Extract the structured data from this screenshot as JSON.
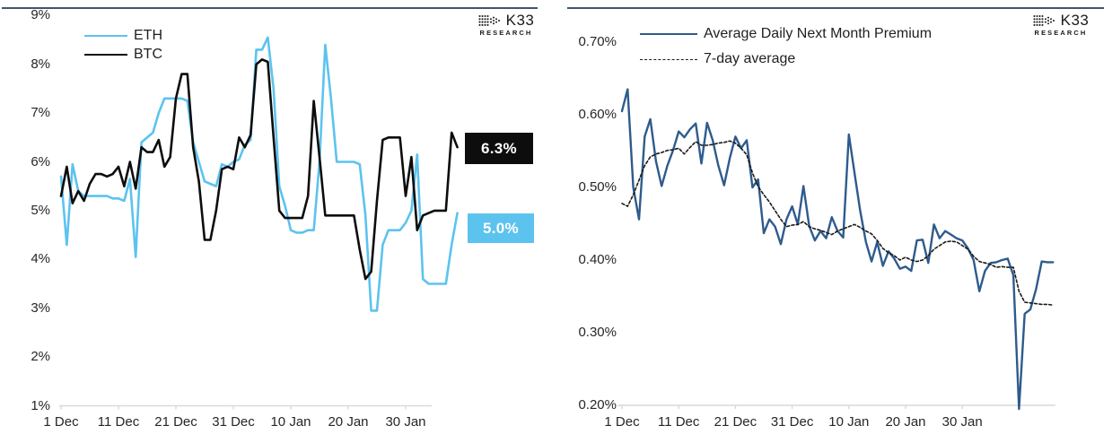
{
  "branding": {
    "logo_text": "K33",
    "logo_subtext": "RESEARCH"
  },
  "colors": {
    "eth_blue": "#5CC3EF",
    "btc_black": "#0D0D0D",
    "premium_blue": "#2E5B8C",
    "avg_dashed": "#1A1A1A",
    "axis_gray": "#D9D9D9",
    "header_rule": "#44546A",
    "label_text": "#262626"
  },
  "chart_data": [
    {
      "type": "line",
      "title": "",
      "xlabel": "",
      "ylabel": "",
      "grid": false,
      "legend_position": "top-left",
      "ylim": [
        1,
        9
      ],
      "y_ticks": [
        {
          "label": "9%",
          "value": 9
        },
        {
          "label": "8%",
          "value": 8
        },
        {
          "label": "7%",
          "value": 7
        },
        {
          "label": "6%",
          "value": 6
        },
        {
          "label": "5%",
          "value": 5
        },
        {
          "label": "4%",
          "value": 4
        },
        {
          "label": "3%",
          "value": 3
        },
        {
          "label": "2%",
          "value": 2
        },
        {
          "label": "1%",
          "value": 1
        }
      ],
      "x_ticks": [
        {
          "label": "1 Dec",
          "day": 0
        },
        {
          "label": "11 Dec",
          "day": 10
        },
        {
          "label": "21 Dec",
          "day": 20
        },
        {
          "label": "31 Dec",
          "day": 30
        },
        {
          "label": "10 Jan",
          "day": 40
        },
        {
          "label": "20 Jan",
          "day": 50
        },
        {
          "label": "30 Jan",
          "day": 60
        }
      ],
      "series": [
        {
          "name": "ETH",
          "color": "#5CC3EF",
          "style": "solid",
          "values": [
            5.7,
            4.3,
            5.95,
            5.4,
            5.3,
            5.3,
            5.3,
            5.3,
            5.3,
            5.25,
            5.25,
            5.2,
            5.65,
            4.05,
            6.4,
            6.5,
            6.6,
            7.0,
            7.3,
            7.3,
            7.3,
            7.3,
            7.25,
            6.4,
            6.0,
            5.6,
            5.55,
            5.5,
            5.95,
            5.9,
            6.0,
            6.05,
            6.35,
            6.45,
            8.3,
            8.3,
            8.55,
            7.5,
            5.5,
            5.1,
            4.6,
            4.55,
            4.55,
            4.6,
            4.6,
            6.0,
            8.4,
            7.3,
            6.0,
            6.0,
            6.0,
            6.0,
            5.95,
            4.9,
            2.95,
            2.95,
            4.3,
            4.6,
            4.6,
            4.6,
            4.75,
            5.0,
            6.15,
            3.6,
            3.5,
            3.5,
            3.5,
            3.5,
            4.3,
            4.95
          ]
        },
        {
          "name": "BTC",
          "color": "#0D0D0D",
          "style": "solid",
          "values": [
            5.3,
            5.9,
            5.15,
            5.4,
            5.2,
            5.55,
            5.75,
            5.75,
            5.7,
            5.75,
            5.9,
            5.5,
            6.0,
            5.45,
            6.3,
            6.2,
            6.2,
            6.45,
            5.9,
            6.1,
            7.3,
            7.8,
            7.8,
            6.3,
            5.6,
            4.4,
            4.4,
            5.0,
            5.85,
            5.9,
            5.85,
            6.5,
            6.3,
            6.55,
            8.0,
            8.1,
            8.05,
            6.5,
            5.0,
            4.85,
            4.85,
            4.85,
            4.85,
            5.3,
            7.25,
            6.1,
            4.9,
            4.9,
            4.9,
            4.9,
            4.9,
            4.9,
            4.2,
            3.6,
            3.75,
            5.2,
            6.45,
            6.5,
            6.5,
            6.5,
            5.3,
            6.1,
            4.6,
            4.9,
            4.95,
            5.0,
            5.0,
            5.0,
            6.6,
            6.3
          ]
        }
      ],
      "annotations": [
        {
          "label": "6.3%",
          "value": 6.3,
          "bg": "#0D0D0D",
          "color": "#FFFFFF"
        },
        {
          "label": "5.0%",
          "value": 5.0,
          "bg": "#5CC3EF",
          "color": "#FFFFFF"
        }
      ]
    },
    {
      "type": "line",
      "title": "",
      "xlabel": "",
      "ylabel": "",
      "grid": false,
      "legend_position": "top-left",
      "ylim": [
        0.2,
        0.7
      ],
      "y_ticks": [
        {
          "label": "0.70%",
          "value": 0.7
        },
        {
          "label": "0.60%",
          "value": 0.6
        },
        {
          "label": "0.50%",
          "value": 0.5
        },
        {
          "label": "0.40%",
          "value": 0.4
        },
        {
          "label": "0.30%",
          "value": 0.3
        },
        {
          "label": "0.20%",
          "value": 0.2
        }
      ],
      "x_ticks": [
        {
          "label": "1 Dec",
          "day": 0
        },
        {
          "label": "11 Dec",
          "day": 10
        },
        {
          "label": "21 Dec",
          "day": 20
        },
        {
          "label": "31 Dec",
          "day": 30
        },
        {
          "label": "10 Jan",
          "day": 40
        },
        {
          "label": "20 Jan",
          "day": 50
        },
        {
          "label": "30 Jan",
          "day": 60
        },
        {
          "label": "",
          "day": 70
        }
      ],
      "series": [
        {
          "name": "Average Daily Next Month Premium",
          "color": "#2E5B8C",
          "style": "solid",
          "values": [
            0.605,
            0.635,
            0.5,
            0.456,
            0.57,
            0.594,
            0.536,
            0.502,
            0.53,
            0.551,
            0.577,
            0.569,
            0.58,
            0.588,
            0.533,
            0.589,
            0.565,
            0.53,
            0.503,
            0.54,
            0.57,
            0.554,
            0.565,
            0.5,
            0.511,
            0.437,
            0.456,
            0.446,
            0.422,
            0.456,
            0.474,
            0.449,
            0.502,
            0.447,
            0.427,
            0.44,
            0.43,
            0.459,
            0.44,
            0.431,
            0.573,
            0.52,
            0.468,
            0.425,
            0.398,
            0.425,
            0.392,
            0.412,
            0.402,
            0.388,
            0.391,
            0.385,
            0.427,
            0.428,
            0.396,
            0.449,
            0.43,
            0.44,
            0.435,
            0.43,
            0.427,
            0.416,
            0.4,
            0.357,
            0.385,
            0.396,
            0.397,
            0.4,
            0.402,
            0.379,
            0.195,
            0.326,
            0.332,
            0.36,
            0.398,
            0.397,
            0.397
          ]
        },
        {
          "name": "7-day average",
          "color": "#1A1A1A",
          "style": "dashed",
          "values": [
            0.478,
            0.474,
            0.49,
            0.51,
            0.53,
            0.542,
            0.546,
            0.548,
            0.551,
            0.552,
            0.554,
            0.546,
            0.555,
            0.563,
            0.558,
            0.558,
            0.559,
            0.561,
            0.562,
            0.564,
            0.561,
            0.554,
            0.545,
            0.52,
            0.501,
            0.49,
            0.48,
            0.468,
            0.456,
            0.446,
            0.448,
            0.449,
            0.453,
            0.446,
            0.443,
            0.441,
            0.438,
            0.435,
            0.44,
            0.443,
            0.446,
            0.449,
            0.445,
            0.44,
            0.436,
            0.427,
            0.416,
            0.41,
            0.406,
            0.4,
            0.404,
            0.4,
            0.398,
            0.4,
            0.406,
            0.415,
            0.42,
            0.425,
            0.426,
            0.425,
            0.42,
            0.415,
            0.405,
            0.398,
            0.396,
            0.394,
            0.39,
            0.391,
            0.39,
            0.39,
            0.357,
            0.342,
            0.341,
            0.34,
            0.339,
            0.339,
            0.338
          ]
        }
      ],
      "annotations": []
    }
  ]
}
